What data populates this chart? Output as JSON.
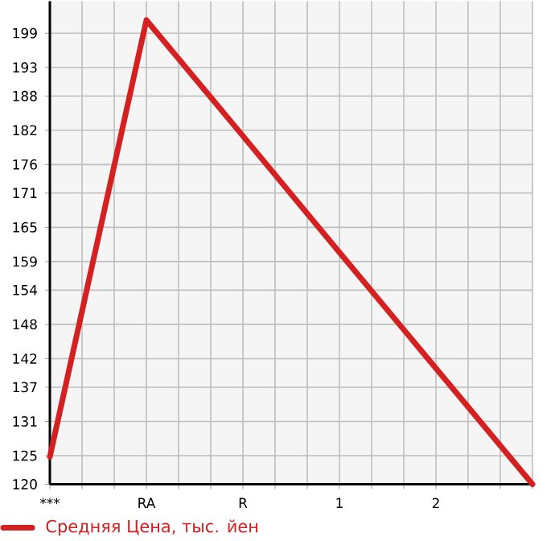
{
  "chart_data": {
    "type": "line",
    "categories": [
      "***",
      "RA",
      "R",
      "1",
      "2",
      null
    ],
    "series": [
      {
        "name": "Средняя Цена, тыс. йен",
        "color": "#d42020",
        "values": [
          124.8,
          201.3,
          181.0,
          160.6,
          140.3,
          120
        ]
      }
    ],
    "ylim": [
      120,
      204.6
    ],
    "yticks": [
      120,
      125,
      131,
      137,
      142,
      148,
      154,
      159,
      165,
      171,
      176,
      182,
      188,
      193,
      199
    ],
    "grid": true,
    "legend": "bottom",
    "marker": "none",
    "line_style": "solid"
  }
}
